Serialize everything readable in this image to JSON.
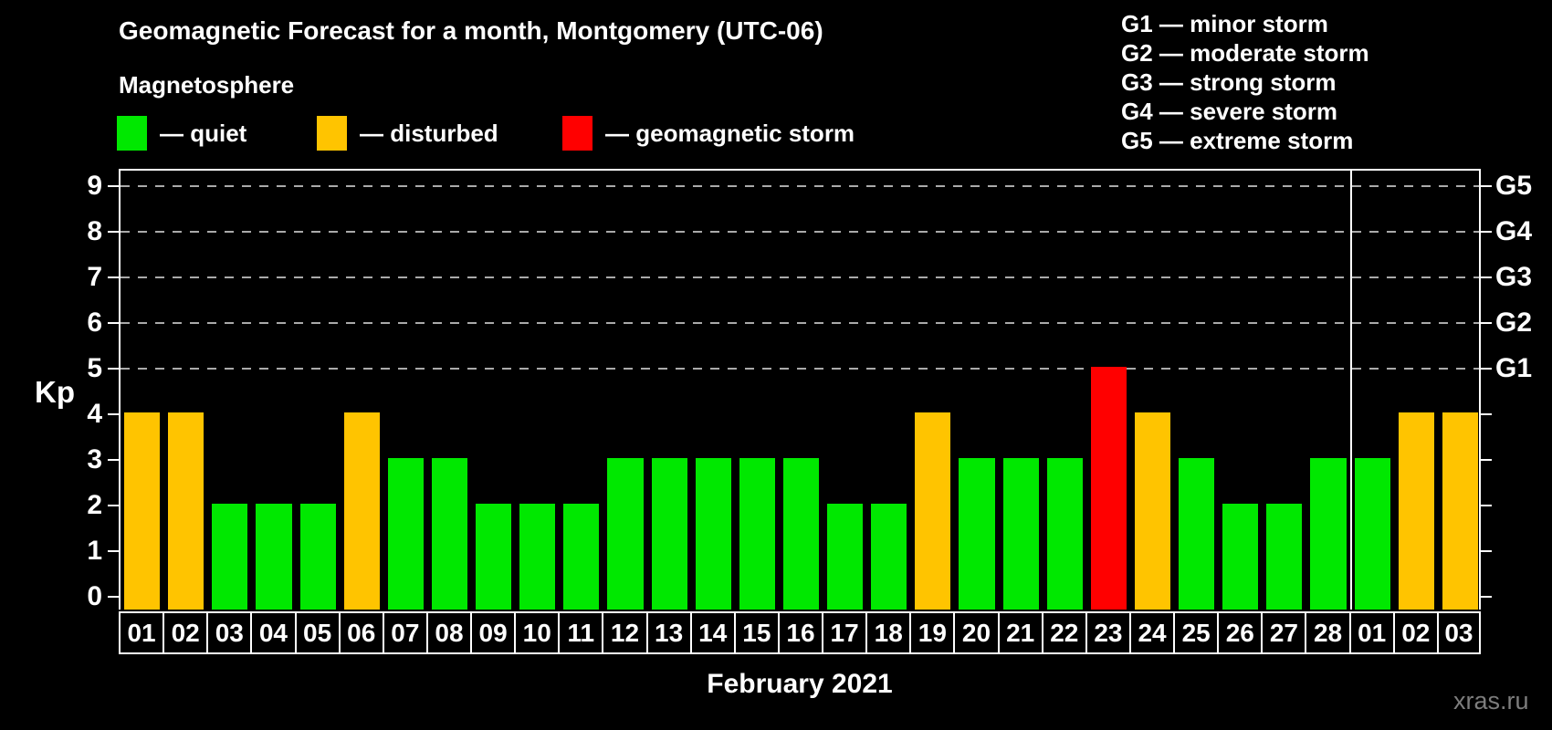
{
  "header": {
    "title": "Geomagnetic Forecast for a month, Montgomery (UTC-06)",
    "subtitle": "Magnetosphere"
  },
  "legend": {
    "items": [
      {
        "label": "— quiet",
        "status": "quiet",
        "color": "#00e800"
      },
      {
        "label": "— disturbed",
        "status": "disturbed",
        "color": "#ffc400"
      },
      {
        "label": "— geomagnetic storm",
        "status": "storm",
        "color": "#ff0000"
      }
    ]
  },
  "g_legend": {
    "items": [
      "G1 — minor storm",
      "G2 — moderate storm",
      "G3 — strong storm",
      "G4 — severe storm",
      "G5 — extreme storm"
    ]
  },
  "chart_data": {
    "type": "bar",
    "title": "Geomagnetic Forecast for a month, Montgomery (UTC-06)",
    "ylabel": "Kp",
    "xlabel": "February 2021",
    "ylim": [
      0,
      9
    ],
    "yticks": [
      0,
      1,
      2,
      3,
      4,
      5,
      6,
      7,
      8,
      9
    ],
    "grid_levels": [
      5,
      6,
      7,
      8,
      9
    ],
    "grid_style": "dashed, storm levels only",
    "legend_position": "top-left",
    "right_axis_labels": [
      {
        "level": 5,
        "label": "G1"
      },
      {
        "level": 6,
        "label": "G2"
      },
      {
        "level": 7,
        "label": "G3"
      },
      {
        "level": 8,
        "label": "G4"
      },
      {
        "level": 9,
        "label": "G5"
      }
    ],
    "categories": [
      "01",
      "02",
      "03",
      "04",
      "05",
      "06",
      "07",
      "08",
      "09",
      "10",
      "11",
      "12",
      "13",
      "14",
      "15",
      "16",
      "17",
      "18",
      "19",
      "20",
      "21",
      "22",
      "23",
      "24",
      "25",
      "26",
      "27",
      "28",
      "01",
      "02",
      "03"
    ],
    "values": [
      4,
      4,
      2,
      2,
      2,
      4,
      3,
      3,
      2,
      2,
      2,
      3,
      3,
      3,
      3,
      3,
      2,
      2,
      4,
      3,
      3,
      3,
      5,
      4,
      3,
      2,
      2,
      3,
      3,
      4,
      4
    ],
    "statuses": [
      "disturbed",
      "disturbed",
      "quiet",
      "quiet",
      "quiet",
      "disturbed",
      "quiet",
      "quiet",
      "quiet",
      "quiet",
      "quiet",
      "quiet",
      "quiet",
      "quiet",
      "quiet",
      "quiet",
      "quiet",
      "quiet",
      "disturbed",
      "quiet",
      "quiet",
      "quiet",
      "storm",
      "disturbed",
      "quiet",
      "quiet",
      "quiet",
      "quiet",
      "quiet",
      "disturbed",
      "disturbed"
    ],
    "month_boundary_index": 28,
    "status_colors": {
      "quiet": "#00e800",
      "disturbed": "#ffc400",
      "storm": "#ff0000"
    },
    "axis_color": "#ffffff",
    "grid_color": "#aaaaaa",
    "background_color": "#000000"
  },
  "footer": {
    "month_label": "February 2021",
    "watermark": "xras.ru"
  }
}
